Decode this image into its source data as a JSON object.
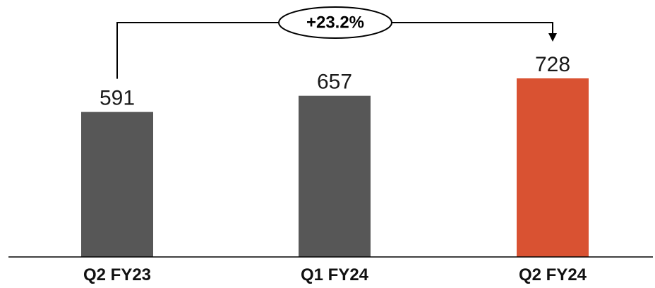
{
  "chart_data": {
    "type": "bar",
    "categories": [
      "Q2 FY23",
      "Q1 FY24",
      "Q2 FY24"
    ],
    "values": [
      591,
      657,
      728
    ],
    "colors": [
      "#575757",
      "#575757",
      "#d95232"
    ],
    "value_labels": [
      "591",
      "657",
      "728"
    ],
    "ylim": [
      0,
      728
    ],
    "grid": false,
    "annotation": {
      "label": "+23.2%",
      "from_category": "Q2 FY23",
      "to_category": "Q2 FY24"
    }
  }
}
